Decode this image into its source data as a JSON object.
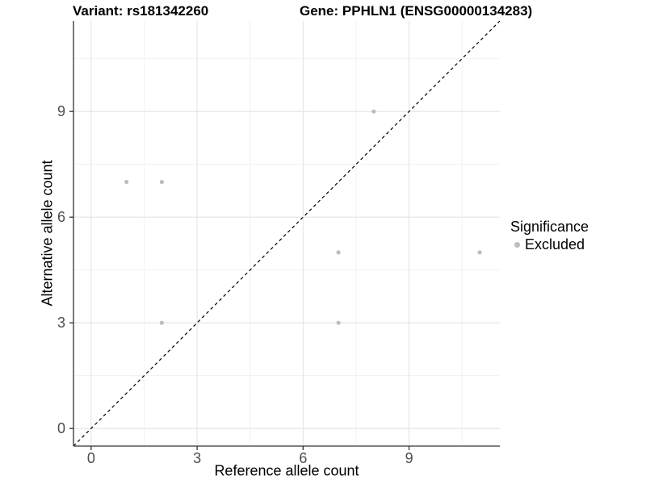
{
  "titles": {
    "variant": "Variant: rs181342260",
    "gene": "Gene: PPHLN1 (ENSG00000134283)"
  },
  "chart_data": {
    "type": "scatter",
    "title_left": "Variant: rs181342260",
    "title_right": "Gene: PPHLN1 (ENSG00000134283)",
    "xlabel": "Reference allele count",
    "ylabel": "Alternative allele count",
    "xlim": [
      -0.5,
      11.57
    ],
    "ylim": [
      -0.5,
      11.57
    ],
    "x_ticks": [
      0,
      3,
      6,
      9
    ],
    "y_ticks": [
      0,
      3,
      6,
      9
    ],
    "minor_gridlines": [
      1.5,
      4.5,
      7.5,
      10.5
    ],
    "grid": true,
    "points": [
      {
        "x": 1,
        "y": 7
      },
      {
        "x": 2,
        "y": 7
      },
      {
        "x": 2,
        "y": 3
      },
      {
        "x": 7,
        "y": 5
      },
      {
        "x": 7,
        "y": 3
      },
      {
        "x": 8,
        "y": 9
      },
      {
        "x": 11,
        "y": 5
      }
    ],
    "identity_line": {
      "type": "dashed",
      "slope": 1,
      "intercept": 0,
      "color": "#000000"
    },
    "point_color": "#bdbdbd",
    "legend_position": "right",
    "legend": {
      "title": "Significance",
      "items": [
        {
          "label": "Excluded",
          "color": "#bdbdbd"
        }
      ]
    },
    "colors": {
      "axis_line": "#333333",
      "tick_label": "#4d4d4d",
      "major_grid": "#e4e4e4",
      "minor_grid": "#efefef",
      "background": "#ffffff"
    }
  }
}
